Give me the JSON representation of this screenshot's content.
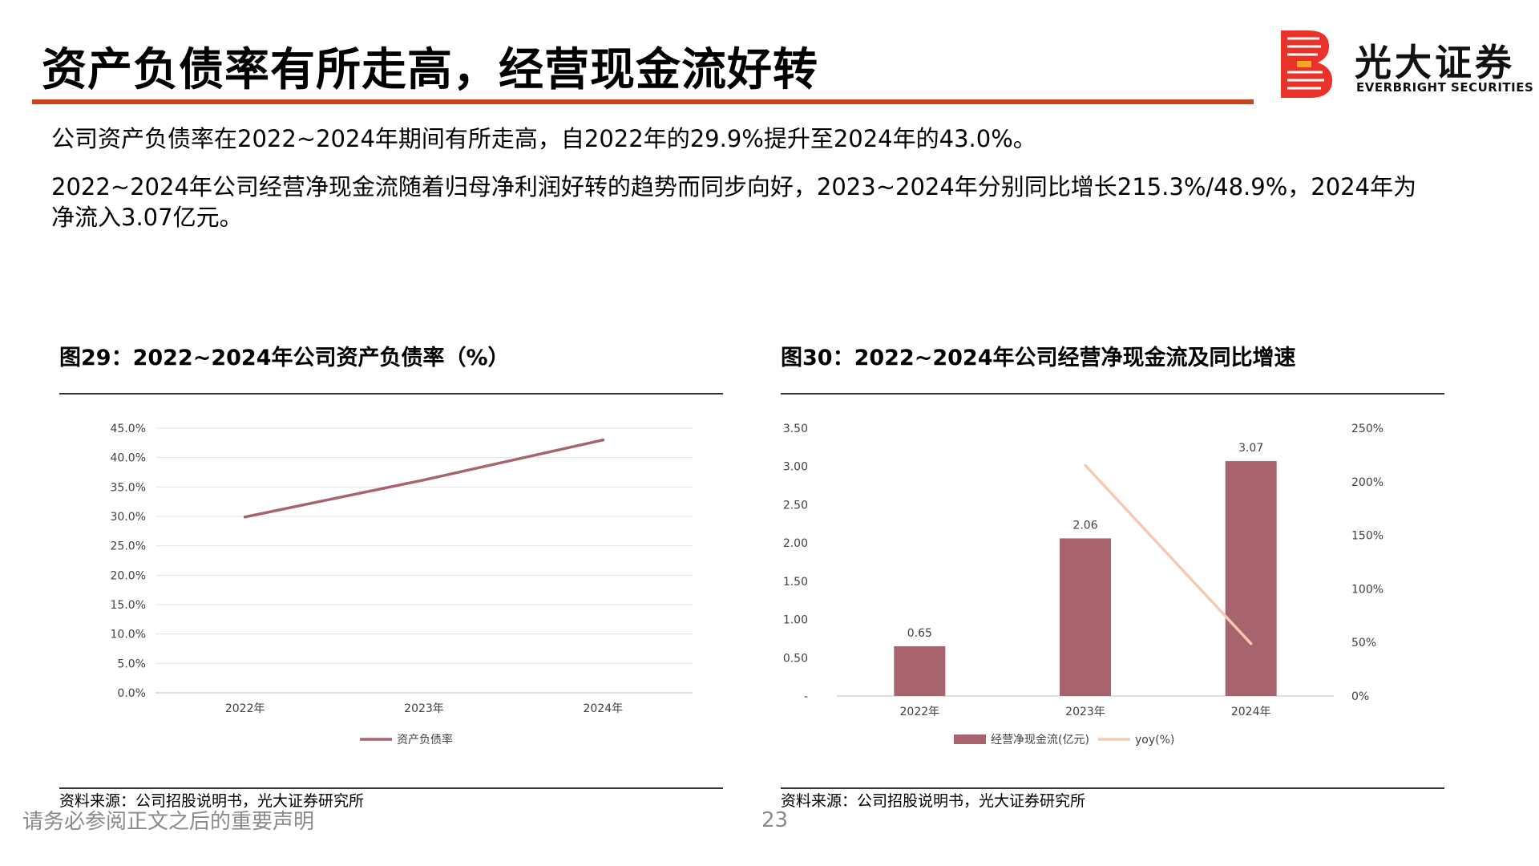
{
  "page": {
    "title": "资产负债率有所走高，经营现金流好转",
    "logo": {
      "cn": "光大证券",
      "en": "EVERBRIGHT SECURITIES"
    },
    "paragraphs": [
      "公司资产负债率在2022~2024年期间有所走高，自2022年的29.9%提升至2024年的43.0%。",
      "2022~2024年公司经营净现金流随着归母净利润好转的趋势而同步向好，2023~2024年分别同比增长215.3%/48.9%，2024年为净流入3.07亿元。"
    ],
    "disclaimer": "请务必参阅正文之后的重要声明",
    "page_number": "23",
    "accent_color": "#c8441a"
  },
  "figures": [
    {
      "title": "图29：2022~2024年公司资产负债率（%）",
      "source": "资料来源：公司招股说明书，光大证券研究所"
    },
    {
      "title": "图30：2022~2024年公司经营净现金流及同比增速",
      "source": "资料来源：公司招股说明书，光大证券研究所"
    }
  ],
  "chart_data": [
    {
      "type": "line",
      "categories": [
        "2022年",
        "2023年",
        "2024年"
      ],
      "series": [
        {
          "name": "资产负债率",
          "values": [
            29.9,
            36.2,
            43.0
          ],
          "color": "#a8646e"
        }
      ],
      "y_ticks": [
        "0.0%",
        "5.0%",
        "10.0%",
        "15.0%",
        "20.0%",
        "25.0%",
        "30.0%",
        "35.0%",
        "40.0%",
        "45.0%"
      ],
      "ylim": [
        0,
        45
      ],
      "grid": true,
      "legend": "bottom"
    },
    {
      "type": "bar",
      "categories": [
        "2022年",
        "2023年",
        "2024年"
      ],
      "series": [
        {
          "name": "经营净现金流(亿元)",
          "type": "bar",
          "values": [
            0.65,
            2.06,
            3.07
          ],
          "labels": [
            "0.65",
            "2.06",
            "3.07"
          ],
          "color": "#a8646e"
        },
        {
          "name": "yoy(%)",
          "type": "line",
          "axis": "right",
          "values": [
            null,
            215.3,
            48.9
          ],
          "color": "#f6c9b4"
        }
      ],
      "y_left_ticks": [
        "-",
        "0.50",
        "1.00",
        "1.50",
        "2.00",
        "2.50",
        "3.00",
        "3.50"
      ],
      "ylim_left": [
        0,
        3.5
      ],
      "y_right_ticks": [
        "0%",
        "50%",
        "100%",
        "150%",
        "200%",
        "250%"
      ],
      "ylim_right": [
        0,
        250
      ],
      "grid": false,
      "legend": "bottom"
    }
  ]
}
